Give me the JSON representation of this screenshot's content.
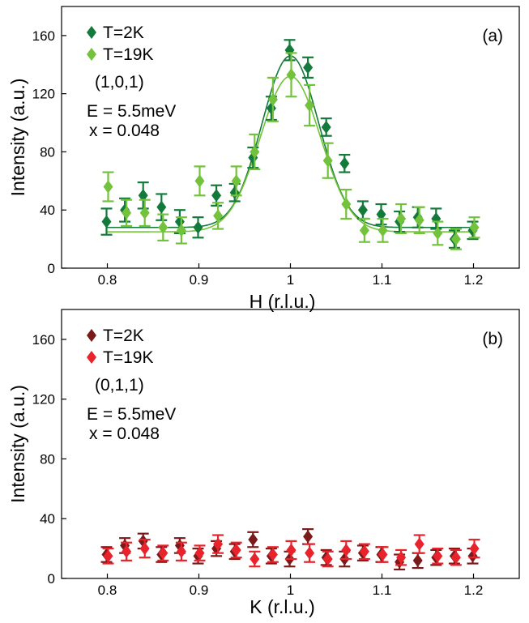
{
  "chart_data": [
    {
      "type": "scatter",
      "panel_label": "(a)",
      "xlabel": "H (r.l.u.)",
      "ylabel": "Intensity (a.u.)",
      "xlim": [
        0.75,
        1.25
      ],
      "ylim": [
        0,
        180
      ],
      "xticks": [
        0.8,
        0.9,
        1.0,
        1.1,
        1.2
      ],
      "xtick_labels": [
        "0.8",
        "0.9",
        "1",
        "1.1",
        "1.2"
      ],
      "yticks": [
        0,
        40,
        80,
        120,
        160
      ],
      "ytick_labels": [
        "0",
        "40",
        "80",
        "120",
        "160"
      ],
      "annotations": [
        "(1,0,1)",
        "E = 5.5meV",
        "x = 0.048"
      ],
      "legend_position": "top-left",
      "series": [
        {
          "name": "T=2K",
          "color": "#137a3b",
          "marker": "diamond",
          "x": [
            0.8,
            0.82,
            0.84,
            0.86,
            0.88,
            0.9,
            0.92,
            0.94,
            0.96,
            0.98,
            1.0,
            1.02,
            1.04,
            1.06,
            1.08,
            1.1,
            1.12,
            1.14,
            1.16,
            1.18,
            1.2
          ],
          "y": [
            32,
            40,
            50,
            42,
            32,
            28,
            50,
            52,
            76,
            110,
            150,
            138,
            97,
            72,
            40,
            37,
            32,
            35,
            34,
            20,
            26
          ],
          "err": [
            9,
            8,
            9,
            9,
            8,
            7,
            7,
            6,
            7,
            8,
            7,
            7,
            6,
            6,
            6,
            7,
            7,
            7,
            7,
            6,
            6
          ],
          "fit": {
            "baseline": 28,
            "amplitude": 118,
            "center": 1.0,
            "sigma": 0.031
          }
        },
        {
          "name": "T=19K",
          "color": "#73c23b",
          "marker": "diamond",
          "x": [
            0.8,
            0.82,
            0.84,
            0.86,
            0.88,
            0.9,
            0.92,
            0.94,
            0.96,
            0.98,
            1.0,
            1.02,
            1.04,
            1.06,
            1.08,
            1.1,
            1.12,
            1.14,
            1.16,
            1.18,
            1.2
          ],
          "y": [
            56,
            38,
            38,
            28,
            26,
            60,
            36,
            60,
            80,
            116,
            133,
            112,
            74,
            44,
            26,
            26,
            34,
            33,
            24,
            20,
            28
          ],
          "err": [
            10,
            9,
            9,
            9,
            9,
            10,
            9,
            10,
            12,
            15,
            15,
            14,
            12,
            10,
            8,
            8,
            10,
            9,
            8,
            7,
            7
          ],
          "fit": {
            "baseline": 25,
            "amplitude": 107,
            "center": 1.0,
            "sigma": 0.033
          }
        }
      ]
    },
    {
      "type": "scatter",
      "panel_label": "(b)",
      "xlabel": "K (r.l.u.)",
      "ylabel": "Intensity (a.u.)",
      "xlim": [
        0.75,
        1.25
      ],
      "ylim": [
        0,
        180
      ],
      "xticks": [
        0.8,
        0.9,
        1.0,
        1.1,
        1.2
      ],
      "xtick_labels": [
        "0.8",
        "0.9",
        "1",
        "1.1",
        "1.2"
      ],
      "yticks": [
        0,
        40,
        80,
        120,
        160
      ],
      "ytick_labels": [
        "0",
        "40",
        "80",
        "120",
        "160"
      ],
      "annotations": [
        "(0,1,1)",
        "E = 5.5meV",
        "x = 0.048"
      ],
      "legend_position": "top-left",
      "series": [
        {
          "name": "T=2K",
          "color": "#7a1a1a",
          "marker": "diamond",
          "x": [
            0.8,
            0.82,
            0.84,
            0.86,
            0.88,
            0.9,
            0.92,
            0.94,
            0.96,
            0.98,
            1.0,
            1.02,
            1.04,
            1.06,
            1.08,
            1.1,
            1.12,
            1.14,
            1.16,
            1.18,
            1.2
          ],
          "y": [
            16,
            22,
            25,
            16,
            22,
            15,
            20,
            18,
            26,
            15,
            13,
            28,
            14,
            13,
            17,
            16,
            11,
            12,
            14,
            15,
            15
          ],
          "err": [
            5,
            5,
            5,
            5,
            5,
            5,
            5,
            5,
            5,
            5,
            5,
            5,
            5,
            5,
            5,
            5,
            5,
            5,
            5,
            5,
            5
          ]
        },
        {
          "name": "T=19K",
          "color": "#e8232b",
          "marker": "diamond",
          "x": [
            0.8,
            0.82,
            0.84,
            0.86,
            0.88,
            0.9,
            0.92,
            0.94,
            0.96,
            0.98,
            1.0,
            1.02,
            1.04,
            1.06,
            1.08,
            1.1,
            1.12,
            1.14,
            1.16,
            1.18,
            1.2
          ],
          "y": [
            15,
            18,
            20,
            17,
            18,
            17,
            23,
            19,
            13,
            16,
            19,
            17,
            13,
            19,
            18,
            16,
            14,
            23,
            15,
            14,
            20
          ],
          "err": [
            5,
            6,
            6,
            5,
            6,
            5,
            6,
            5,
            5,
            5,
            6,
            6,
            5,
            6,
            5,
            5,
            5,
            6,
            5,
            5,
            6
          ]
        }
      ]
    }
  ]
}
